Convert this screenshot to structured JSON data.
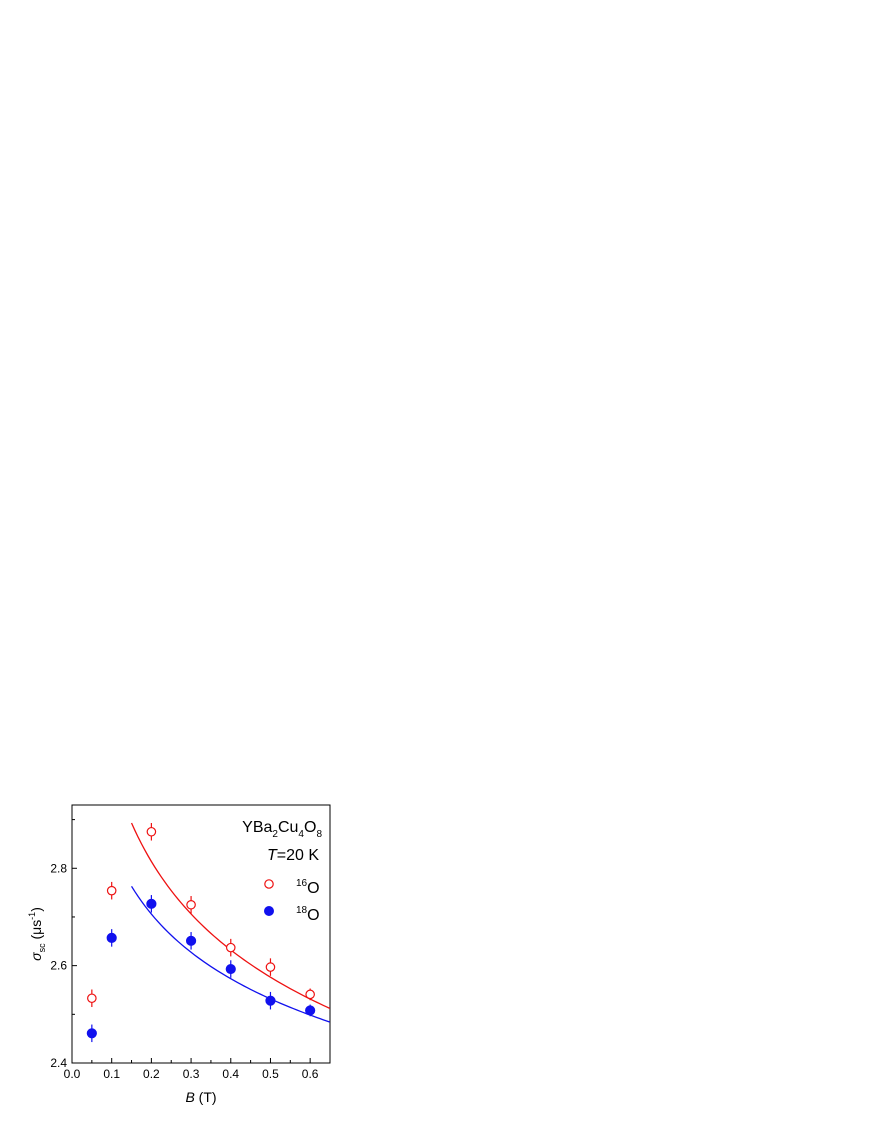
{
  "chart_data": {
    "type": "scatter",
    "xlabel": {
      "italic": "B",
      "rest": " (T)"
    },
    "ylabel": {
      "symbol": "σ",
      "sub": "sc",
      "pre": " (μs",
      "sup": "-1",
      "post": ")"
    },
    "xlim": [
      0.0,
      0.65
    ],
    "ylim": [
      2.4,
      2.93
    ],
    "xticks": [
      0.0,
      0.1,
      0.2,
      0.3,
      0.4,
      0.5,
      0.6
    ],
    "xtick_labels": [
      "0.0",
      "0.1",
      "0.2",
      "0.3",
      "0.4",
      "0.5",
      "0.6"
    ],
    "yticks": [
      2.4,
      2.6,
      2.8
    ],
    "ytick_labels": [
      "2.4",
      "2.6",
      "2.8"
    ],
    "grid": false,
    "legend_position": "top-right",
    "annotations": {
      "compound": {
        "p1": "YBa",
        "s1": "2",
        "p2": "Cu",
        "s2": "4",
        "p3": "O",
        "s3": "8"
      },
      "temperature": {
        "italic": "T",
        "rest": "=20 K"
      }
    },
    "series": [
      {
        "name": "16O",
        "label_sup": "16",
        "label_main": "O",
        "color": "#ee1111",
        "marker": "open-circle",
        "x": [
          0.05,
          0.1,
          0.2,
          0.3,
          0.4,
          0.5,
          0.6
        ],
        "y": [
          2.533,
          2.754,
          2.875,
          2.725,
          2.637,
          2.597,
          2.541
        ],
        "err": [
          0.018,
          0.018,
          0.018,
          0.018,
          0.018,
          0.018,
          0.012
        ],
        "fit_x": [
          0.15,
          0.65
        ],
        "fit_y_ends": [
          2.893,
          2.512
        ]
      },
      {
        "name": "18O",
        "label_sup": "18",
        "label_main": "O",
        "color": "#1111ee",
        "marker": "filled-circle",
        "x": [
          0.05,
          0.1,
          0.2,
          0.3,
          0.4,
          0.5,
          0.6
        ],
        "y": [
          2.461,
          2.657,
          2.727,
          2.651,
          2.593,
          2.528,
          2.508
        ],
        "err": [
          0.018,
          0.018,
          0.018,
          0.018,
          0.018,
          0.018,
          0.012
        ],
        "fit_x": [
          0.15,
          0.65
        ],
        "fit_y_ends": [
          2.763,
          2.484
        ]
      }
    ]
  }
}
